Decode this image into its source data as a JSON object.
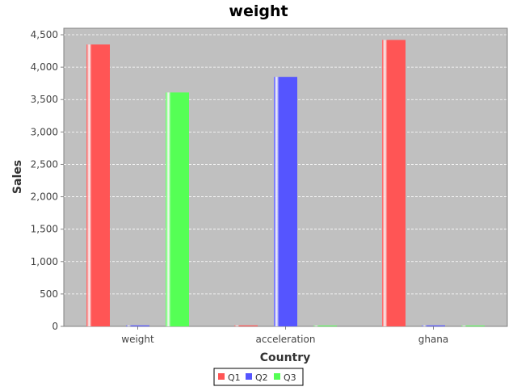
{
  "chart_data": {
    "type": "bar",
    "title": "weight",
    "xlabel": "Country",
    "ylabel": "Sales",
    "categories": [
      "weight",
      "acceleration",
      "ghana"
    ],
    "series": [
      {
        "name": "Q1",
        "color": "#ff5555",
        "values": [
          4350,
          15,
          4420
        ]
      },
      {
        "name": "Q2",
        "color": "#5555ff",
        "values": [
          15,
          3850,
          15
        ]
      },
      {
        "name": "Q3",
        "color": "#55ff55",
        "values": [
          3610,
          8,
          8
        ]
      }
    ],
    "ylim": [
      0,
      4600
    ],
    "yticks": [
      0,
      500,
      1000,
      1500,
      2000,
      2500,
      3000,
      3500,
      4000,
      4500
    ],
    "ytick_labels": [
      "0",
      "500",
      "1,000",
      "1,500",
      "2,000",
      "2,500",
      "3,000",
      "3,500",
      "4,000",
      "4,500"
    ],
    "grid": true,
    "plot_background": "#c0c0c0",
    "legend": "bottom-center"
  }
}
